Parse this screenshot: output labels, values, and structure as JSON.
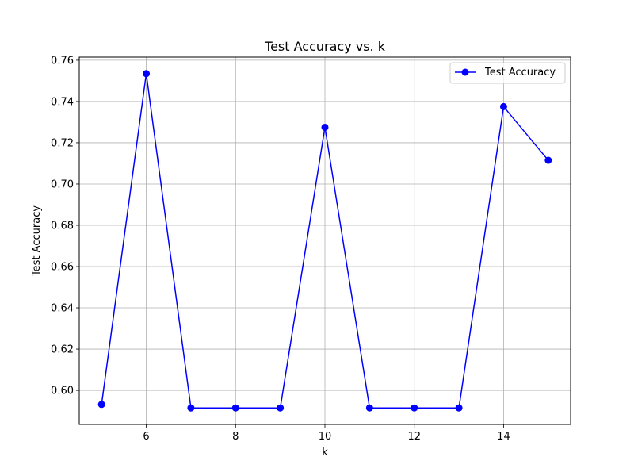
{
  "chart_data": {
    "type": "line",
    "title": "Test Accuracy vs. k",
    "xlabel": "k",
    "ylabel": "Test Accuracy",
    "x": [
      5,
      6,
      7,
      8,
      9,
      10,
      11,
      12,
      13,
      14,
      15
    ],
    "series": [
      {
        "name": "Test Accuracy",
        "color": "#0000ff",
        "marker": "circle",
        "values": [
          0.5932,
          0.7535,
          0.5915,
          0.5915,
          0.5915,
          0.7275,
          0.5915,
          0.5915,
          0.5915,
          0.7375,
          0.7115
        ]
      }
    ],
    "xlim": [
      4.5,
      15.5
    ],
    "ylim": [
      0.5835,
      0.7615
    ],
    "xticks": [
      6,
      8,
      10,
      12,
      14
    ],
    "xtick_labels": [
      "6",
      "8",
      "10",
      "12",
      "14"
    ],
    "yticks": [
      0.6,
      0.62,
      0.64,
      0.66,
      0.68,
      0.7,
      0.72,
      0.74,
      0.76
    ],
    "ytick_labels": [
      "0.60",
      "0.62",
      "0.64",
      "0.66",
      "0.68",
      "0.70",
      "0.72",
      "0.74",
      "0.76"
    ],
    "grid": true,
    "legend_position": "top-right"
  }
}
